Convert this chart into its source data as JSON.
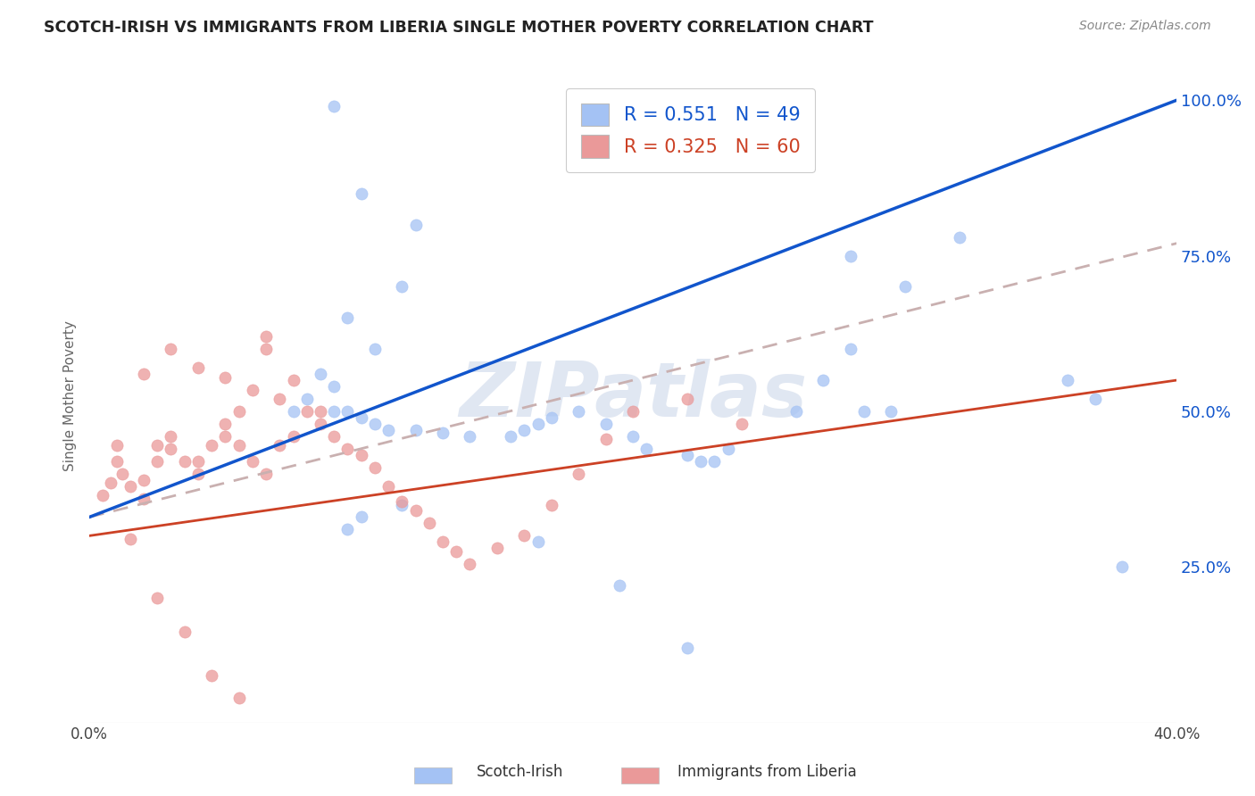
{
  "title": "SCOTCH-IRISH VS IMMIGRANTS FROM LIBERIA SINGLE MOTHER POVERTY CORRELATION CHART",
  "source": "Source: ZipAtlas.com",
  "ylabel": "Single Mother Poverty",
  "right_yticks": [
    "100.0%",
    "75.0%",
    "50.0%",
    "25.0%"
  ],
  "right_ytick_vals": [
    1.0,
    0.75,
    0.5,
    0.25
  ],
  "legend_blue_r": "R = 0.551",
  "legend_blue_n": "N = 49",
  "legend_pink_r": "R = 0.325",
  "legend_pink_n": "N = 60",
  "blue_color": "#a4c2f4",
  "pink_color": "#ea9999",
  "blue_line_color": "#1155cc",
  "pink_line_color": "#cc4125",
  "pink_line_dash_color": "#c9b0b0",
  "watermark": "ZIPatlas",
  "watermark_color": "#c8d4e8",
  "blue_scatter_x": [
    0.245,
    0.245,
    0.09,
    0.1,
    0.12,
    0.115,
    0.095,
    0.105,
    0.085,
    0.09,
    0.08,
    0.075,
    0.09,
    0.095,
    0.1,
    0.105,
    0.11,
    0.12,
    0.13,
    0.14,
    0.155,
    0.16,
    0.165,
    0.17,
    0.18,
    0.19,
    0.2,
    0.205,
    0.22,
    0.225,
    0.23,
    0.235,
    0.28,
    0.3,
    0.32,
    0.36,
    0.37,
    0.38,
    0.28,
    0.295,
    0.115,
    0.1,
    0.095,
    0.285,
    0.22,
    0.195,
    0.165,
    0.27,
    0.26
  ],
  "blue_scatter_y": [
    1.0,
    0.92,
    0.99,
    0.85,
    0.8,
    0.7,
    0.65,
    0.6,
    0.56,
    0.54,
    0.52,
    0.5,
    0.5,
    0.5,
    0.49,
    0.48,
    0.47,
    0.47,
    0.465,
    0.46,
    0.46,
    0.47,
    0.48,
    0.49,
    0.5,
    0.48,
    0.46,
    0.44,
    0.43,
    0.42,
    0.42,
    0.44,
    0.6,
    0.7,
    0.78,
    0.55,
    0.52,
    0.25,
    0.75,
    0.5,
    0.35,
    0.33,
    0.31,
    0.5,
    0.12,
    0.22,
    0.29,
    0.55,
    0.5
  ],
  "pink_scatter_x": [
    0.005,
    0.008,
    0.01,
    0.01,
    0.012,
    0.015,
    0.02,
    0.02,
    0.025,
    0.025,
    0.03,
    0.03,
    0.035,
    0.04,
    0.04,
    0.045,
    0.05,
    0.05,
    0.055,
    0.06,
    0.065,
    0.07,
    0.075,
    0.08,
    0.085,
    0.09,
    0.095,
    0.1,
    0.105,
    0.11,
    0.115,
    0.12,
    0.125,
    0.13,
    0.135,
    0.14,
    0.15,
    0.16,
    0.17,
    0.18,
    0.19,
    0.2,
    0.22,
    0.24,
    0.02,
    0.03,
    0.04,
    0.05,
    0.06,
    0.07,
    0.055,
    0.065,
    0.015,
    0.025,
    0.035,
    0.045,
    0.055,
    0.065,
    0.075,
    0.085
  ],
  "pink_scatter_y": [
    0.365,
    0.385,
    0.42,
    0.445,
    0.4,
    0.38,
    0.36,
    0.39,
    0.42,
    0.445,
    0.46,
    0.44,
    0.42,
    0.4,
    0.42,
    0.445,
    0.46,
    0.48,
    0.445,
    0.42,
    0.4,
    0.445,
    0.46,
    0.5,
    0.48,
    0.46,
    0.44,
    0.43,
    0.41,
    0.38,
    0.355,
    0.34,
    0.32,
    0.29,
    0.275,
    0.255,
    0.28,
    0.3,
    0.35,
    0.4,
    0.455,
    0.5,
    0.52,
    0.48,
    0.56,
    0.6,
    0.57,
    0.555,
    0.535,
    0.52,
    0.5,
    0.62,
    0.295,
    0.2,
    0.145,
    0.075,
    0.04,
    0.6,
    0.55,
    0.5
  ],
  "xlim": [
    0.0,
    0.4
  ],
  "ylim": [
    0.0,
    1.05
  ],
  "xticks": [
    0.0,
    0.1,
    0.2,
    0.3,
    0.4
  ],
  "xtick_labels": [
    "0.0%",
    "",
    "",
    "",
    "40.0%"
  ],
  "bg_color": "#ffffff",
  "grid_color": "#e0e0e0"
}
